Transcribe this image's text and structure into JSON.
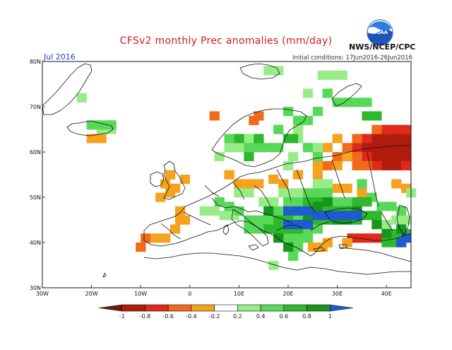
{
  "title": "CFSv2 monthly Prec anomalies (mm/day)",
  "month": "Jul 2016",
  "initial_conditions": "Initial conditions: 17Jun2016-26Jun2016",
  "agency": "NWS/NCEP/CPC",
  "logo_text": "NOAA",
  "map": {
    "lon_range": [
      -30,
      45
    ],
    "lat_range": [
      30,
      80
    ],
    "lat_ticks": [
      "30N",
      "40N",
      "50N",
      "60N",
      "70N",
      "80N"
    ],
    "lon_ticks": [
      "30W",
      "20W",
      "10W",
      "0",
      "10E",
      "20E",
      "30E",
      "40E"
    ],
    "anomaly_cells": [
      {
        "level": "-0.8",
        "cells": [
          [
            38,
            63
          ],
          [
            40,
            63
          ],
          [
            42,
            63
          ],
          [
            44,
            63
          ],
          [
            36,
            61
          ],
          [
            38,
            61
          ],
          [
            40,
            61
          ],
          [
            42,
            61
          ],
          [
            44,
            61
          ],
          [
            38,
            59
          ],
          [
            40,
            59
          ],
          [
            42,
            59
          ],
          [
            44,
            59
          ],
          [
            40,
            57
          ],
          [
            42,
            57
          ]
        ]
      },
      {
        "level": "-0.6",
        "cells": [
          [
            36,
            63
          ],
          [
            34,
            61
          ],
          [
            36,
            59
          ],
          [
            38,
            57
          ],
          [
            44,
            57
          ],
          [
            40,
            65
          ],
          [
            42,
            65
          ],
          [
            44,
            65
          ],
          [
            33,
            41
          ],
          [
            35,
            41
          ],
          [
            37,
            41
          ],
          [
            39,
            41
          ]
        ]
      },
      {
        "level": "-0.4",
        "cells": [
          [
            34,
            63
          ],
          [
            32,
            61
          ],
          [
            34,
            59
          ],
          [
            36,
            57
          ],
          [
            34,
            57
          ],
          [
            38,
            65
          ],
          [
            30,
            59
          ],
          [
            28,
            57
          ],
          [
            14,
            68
          ],
          [
            13,
            67
          ],
          [
            5,
            68
          ],
          [
            -9,
            41
          ],
          [
            -10,
            39
          ]
        ]
      },
      {
        "level": "-0.2",
        "cells": [
          [
            30,
            63
          ],
          [
            28,
            61
          ],
          [
            32,
            59
          ],
          [
            30,
            57
          ],
          [
            26,
            57
          ],
          [
            26,
            55
          ],
          [
            22,
            55
          ],
          [
            -4,
            55
          ],
          [
            -5,
            53
          ],
          [
            -4,
            51
          ],
          [
            -3,
            52
          ],
          [
            -6,
            50
          ],
          [
            -1,
            54
          ],
          [
            8,
            55
          ],
          [
            10,
            53
          ],
          [
            12,
            53
          ],
          [
            14,
            53
          ],
          [
            -2,
            47
          ],
          [
            -2,
            45
          ],
          [
            -1,
            45
          ],
          [
            -3,
            43
          ],
          [
            -5,
            41
          ],
          [
            -7,
            41
          ],
          [
            -20,
            63
          ],
          [
            -18,
            63
          ],
          [
            25,
            39
          ],
          [
            27,
            39
          ],
          [
            32,
            40
          ],
          [
            28,
            40
          ],
          [
            19,
            53
          ],
          [
            17,
            54
          ],
          [
            30,
            52
          ],
          [
            32,
            52
          ],
          [
            35,
            51
          ],
          [
            44,
            52
          ],
          [
            42,
            53
          ]
        ]
      },
      {
        "level": "0.2",
        "cells": [
          [
            -16,
            65
          ],
          [
            -18,
            65
          ],
          [
            10,
            51
          ],
          [
            12,
            51
          ],
          [
            15,
            49
          ],
          [
            17,
            49
          ],
          [
            19,
            51
          ],
          [
            21,
            51
          ],
          [
            23,
            51
          ],
          [
            26,
            53
          ],
          [
            28,
            53
          ],
          [
            20,
            57
          ],
          [
            21,
            59
          ],
          [
            22,
            63
          ],
          [
            22,
            65
          ],
          [
            26,
            61
          ],
          [
            8,
            61
          ],
          [
            10,
            61
          ],
          [
            6,
            59
          ],
          [
            12,
            63
          ],
          [
            -22,
            72
          ],
          [
            27,
            77
          ],
          [
            29,
            77
          ],
          [
            31,
            77
          ],
          [
            16,
            78
          ],
          [
            18,
            78
          ],
          [
            24,
            73
          ],
          [
            45,
            51
          ],
          [
            44,
            45
          ],
          [
            42,
            45
          ],
          [
            40,
            44
          ],
          [
            17,
            35
          ],
          [
            31,
            48
          ],
          [
            33,
            48
          ],
          [
            7,
            46
          ],
          [
            9,
            46
          ],
          [
            5,
            47
          ],
          [
            3,
            47
          ]
        ]
      },
      {
        "level": "0.4",
        "cells": [
          [
            24,
            51
          ],
          [
            26,
            51
          ],
          [
            28,
            51
          ],
          [
            30,
            49
          ],
          [
            32,
            49
          ],
          [
            20,
            49
          ],
          [
            22,
            49
          ],
          [
            18,
            47
          ],
          [
            16,
            45
          ],
          [
            14,
            45
          ],
          [
            12,
            45
          ],
          [
            10,
            47
          ],
          [
            8,
            48
          ],
          [
            6,
            49
          ],
          [
            14,
            43
          ],
          [
            12,
            43
          ],
          [
            22,
            45
          ],
          [
            24,
            43
          ],
          [
            26,
            43
          ],
          [
            20,
            41
          ],
          [
            22,
            41
          ],
          [
            24,
            41
          ],
          [
            22,
            39
          ],
          [
            21,
            37
          ],
          [
            18,
            61
          ],
          [
            16,
            61
          ],
          [
            14,
            61
          ],
          [
            12,
            61
          ],
          [
            24,
            61
          ],
          [
            26,
            59
          ],
          [
            22,
            67
          ],
          [
            24,
            67
          ],
          [
            26,
            69
          ],
          [
            20,
            69
          ],
          [
            18,
            65
          ],
          [
            -18,
            66
          ],
          [
            -16,
            66
          ],
          [
            -20,
            66
          ],
          [
            8,
            63
          ],
          [
            30,
            71
          ],
          [
            32,
            71
          ],
          [
            34,
            71
          ],
          [
            36,
            71
          ],
          [
            28,
            73
          ],
          [
            35,
            53
          ],
          [
            37,
            50
          ],
          [
            39,
            48
          ],
          [
            41,
            48
          ],
          [
            43,
            47
          ]
        ]
      },
      {
        "level": "0.6",
        "cells": [
          [
            24,
            49
          ],
          [
            26,
            49
          ],
          [
            28,
            47
          ],
          [
            30,
            47
          ],
          [
            32,
            47
          ],
          [
            34,
            49
          ],
          [
            36,
            49
          ],
          [
            18,
            45
          ],
          [
            20,
            45
          ],
          [
            18,
            43
          ],
          [
            16,
            43
          ],
          [
            20,
            43
          ],
          [
            22,
            43
          ],
          [
            26,
            45
          ],
          [
            28,
            45
          ],
          [
            36,
            46
          ],
          [
            38,
            46
          ],
          [
            34,
            45
          ],
          [
            42,
            42
          ],
          [
            44,
            42
          ],
          [
            40,
            40
          ],
          [
            42,
            40
          ],
          [
            26,
            47
          ],
          [
            10,
            63
          ],
          [
            14,
            63
          ],
          [
            20,
            63
          ],
          [
            38,
            68
          ],
          [
            36,
            68
          ],
          [
            12,
            59
          ],
          [
            21,
            63
          ]
        ]
      },
      {
        "level": "0.8",
        "cells": [
          [
            26,
            48
          ],
          [
            30,
            45
          ],
          [
            32,
            45
          ],
          [
            34,
            47
          ],
          [
            28,
            49
          ],
          [
            24,
            45
          ],
          [
            16,
            47
          ],
          [
            38,
            44
          ],
          [
            40,
            42
          ],
          [
            18,
            41
          ],
          [
            20,
            39
          ],
          [
            43,
            43
          ]
        ]
      },
      {
        "level": "1",
        "cells": [
          [
            22,
            47
          ],
          [
            24,
            47
          ],
          [
            20,
            47
          ],
          [
            26,
            46
          ],
          [
            28,
            46
          ],
          [
            30,
            46
          ],
          [
            20,
            44
          ],
          [
            22,
            44
          ],
          [
            24,
            44
          ],
          [
            32,
            46
          ],
          [
            34,
            46
          ],
          [
            44,
            41
          ],
          [
            43,
            40
          ]
        ]
      }
    ]
  },
  "legend": {
    "labels": [
      "-1",
      "-0.8",
      "-0.6",
      "-0.4",
      "-0.2",
      "0.2",
      "0.4",
      "0.6",
      "0.8",
      "1"
    ],
    "colors": [
      "#6e1a10",
      "#b21c0c",
      "#e0281c",
      "#f06a1c",
      "#f5a31f",
      "#ffffff",
      "#98ec88",
      "#58d858",
      "#2db82d",
      "#16961a",
      "#1e5ad0"
    ]
  }
}
